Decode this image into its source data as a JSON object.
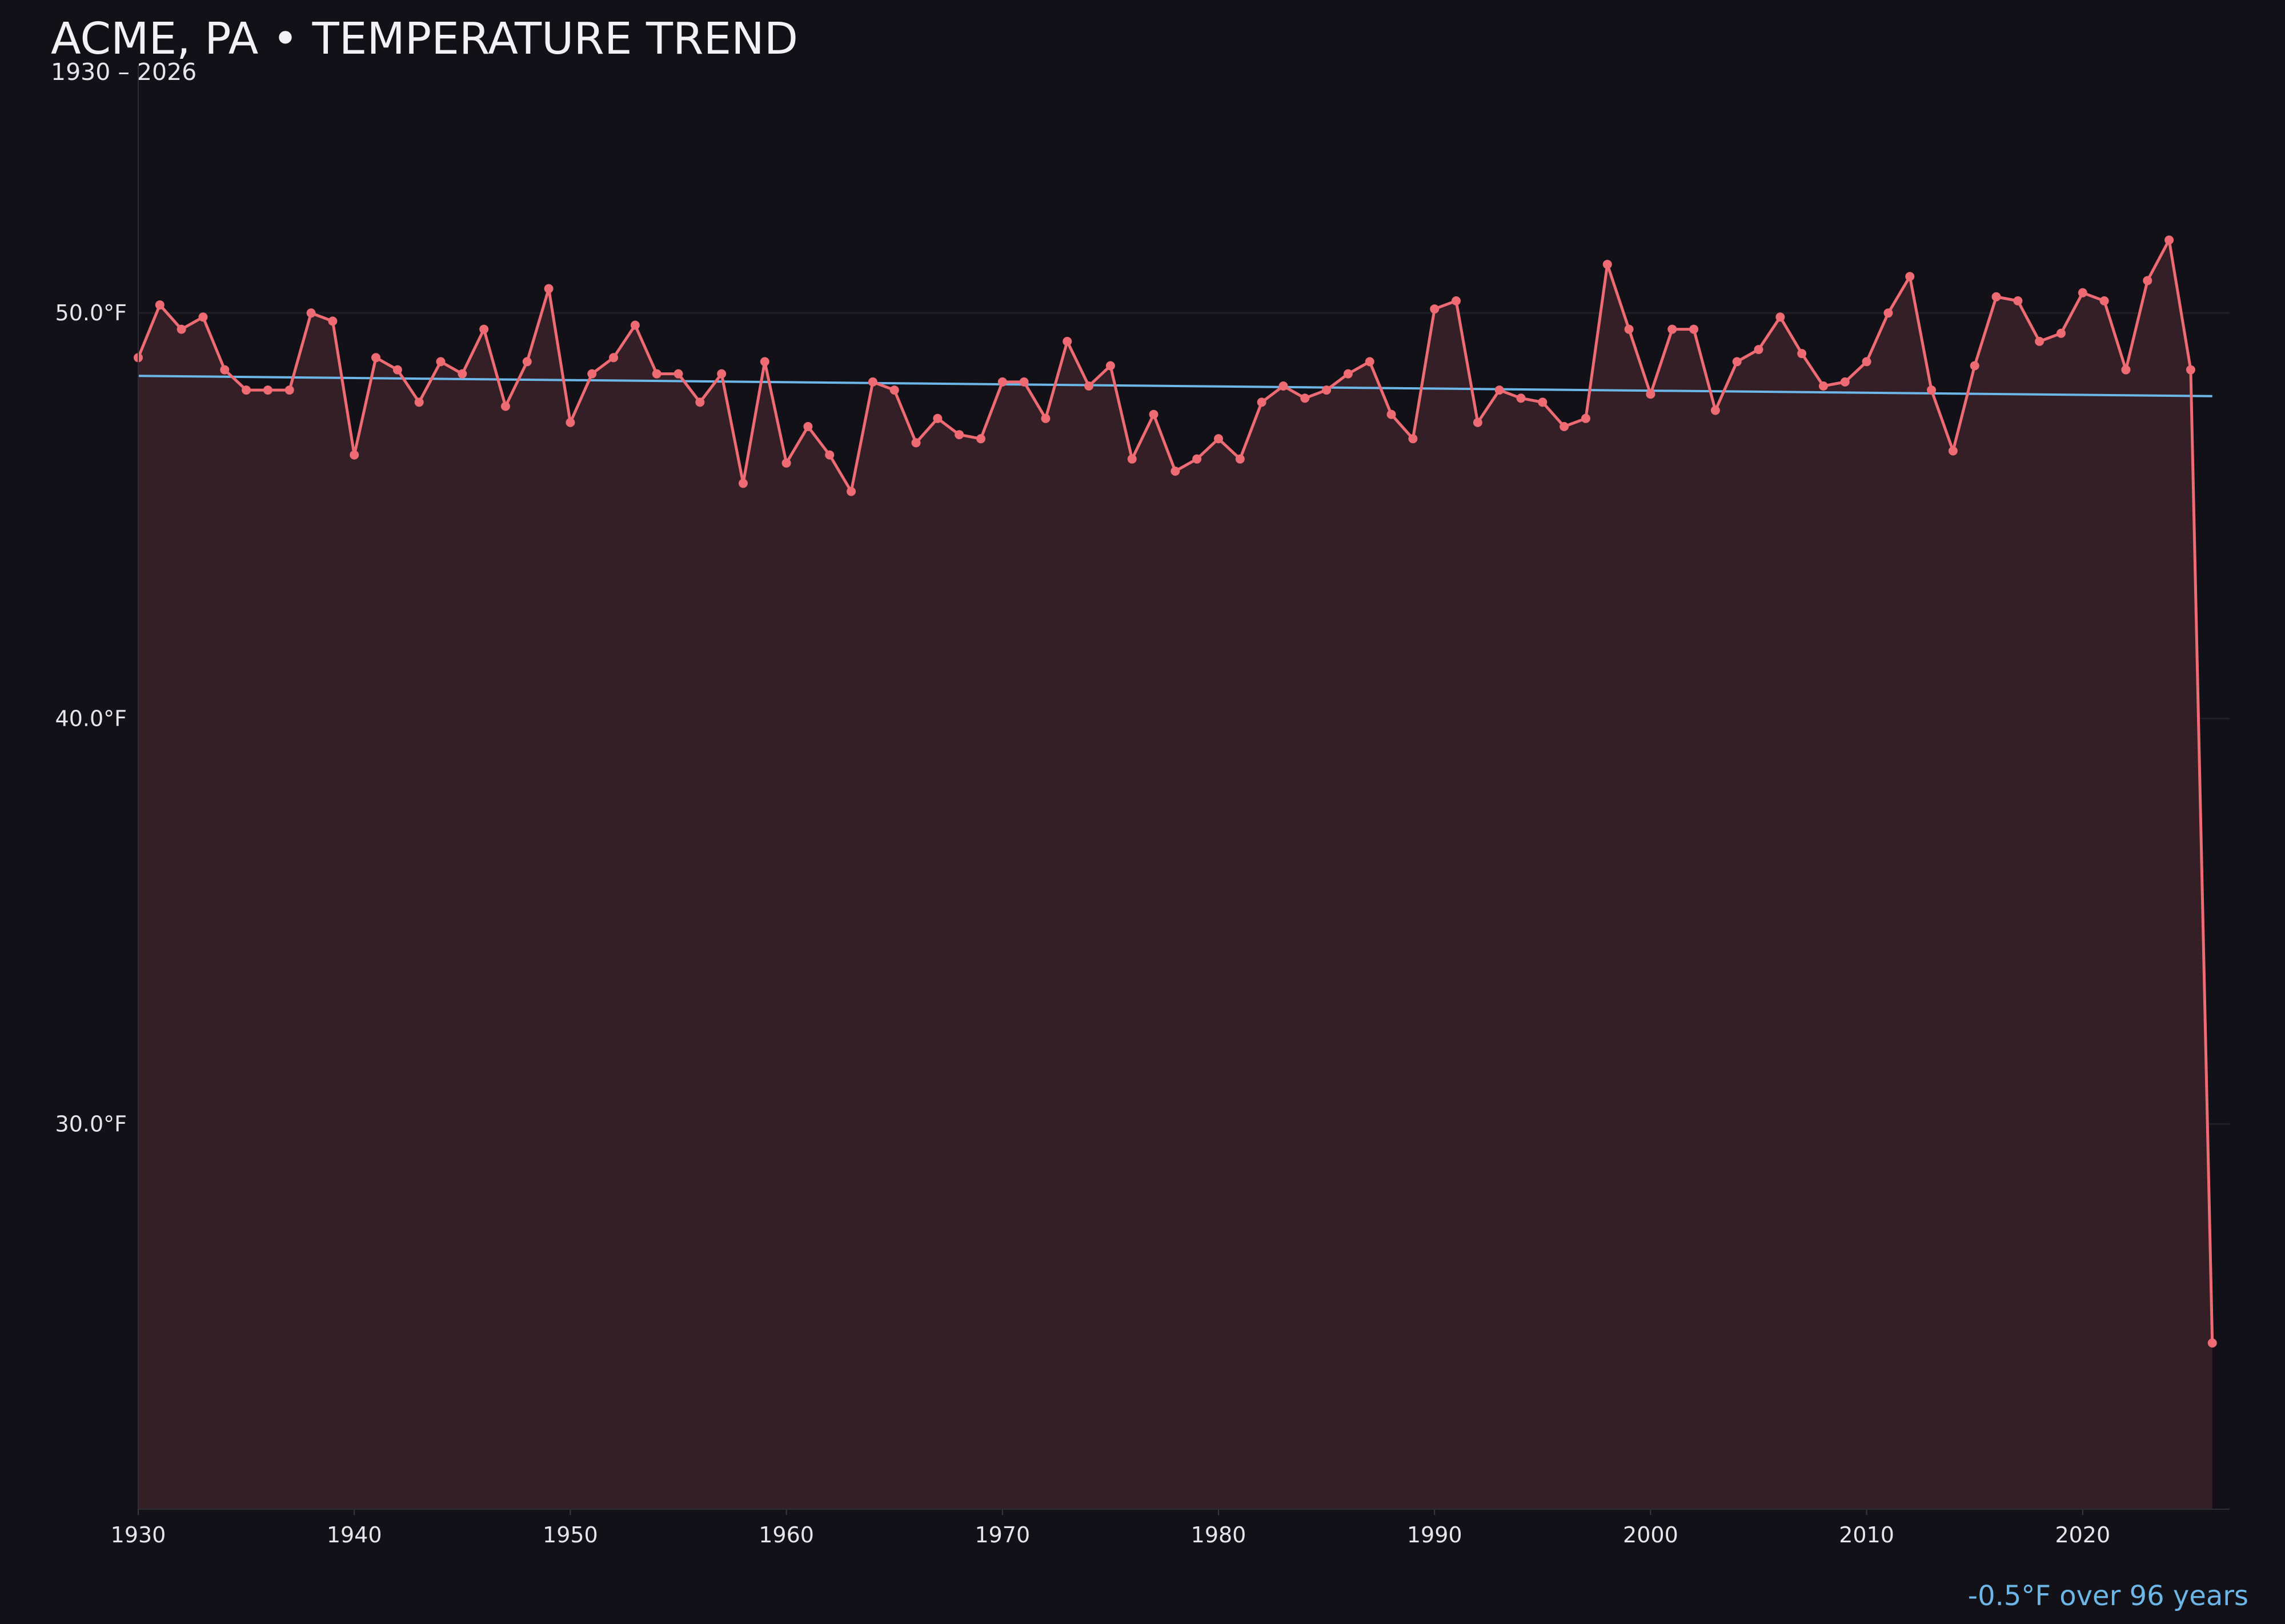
{
  "chart_data": {
    "type": "line",
    "title": "ACME, PA • TEMPERATURE TREND",
    "subtitle": "1930 – 2026",
    "annotation": "-0.5°F over 96 years",
    "x": [
      1930,
      1931,
      1932,
      1933,
      1934,
      1935,
      1936,
      1937,
      1938,
      1939,
      1940,
      1941,
      1942,
      1943,
      1944,
      1945,
      1946,
      1947,
      1948,
      1949,
      1950,
      1951,
      1952,
      1953,
      1954,
      1955,
      1956,
      1957,
      1958,
      1959,
      1960,
      1961,
      1962,
      1963,
      1964,
      1965,
      1966,
      1967,
      1968,
      1969,
      1970,
      1971,
      1972,
      1973,
      1974,
      1975,
      1976,
      1977,
      1978,
      1979,
      1980,
      1981,
      1982,
      1983,
      1984,
      1985,
      1986,
      1987,
      1988,
      1989,
      1990,
      1991,
      1992,
      1993,
      1994,
      1995,
      1996,
      1997,
      1998,
      1999,
      2000,
      2001,
      2002,
      2003,
      2004,
      2005,
      2006,
      2007,
      2008,
      2009,
      2010,
      2011,
      2012,
      2013,
      2014,
      2015,
      2016,
      2017,
      2018,
      2019,
      2020,
      2021,
      2022,
      2023,
      2024,
      2025,
      2026
    ],
    "series": [
      {
        "color": "#ef6b73",
        "values": [
          48.9,
          50.2,
          49.6,
          49.9,
          48.6,
          48.1,
          48.1,
          48.1,
          50.0,
          49.8,
          46.5,
          48.9,
          48.6,
          47.8,
          48.8,
          48.5,
          49.6,
          47.7,
          48.8,
          50.6,
          47.3,
          48.5,
          48.9,
          49.7,
          48.5,
          48.5,
          47.8,
          48.5,
          45.8,
          48.8,
          46.3,
          47.2,
          46.5,
          45.6,
          48.3,
          48.1,
          46.8,
          47.4,
          47.0,
          46.9,
          48.3,
          48.3,
          47.4,
          49.3,
          48.2,
          48.7,
          46.4,
          47.5,
          46.1,
          46.4,
          46.9,
          46.4,
          47.8,
          48.2,
          47.9,
          48.1,
          48.5,
          48.8,
          47.5,
          46.9,
          50.1,
          50.3,
          47.3,
          48.1,
          47.9,
          47.8,
          47.2,
          47.4,
          51.2,
          49.6,
          48.0,
          49.6,
          49.6,
          47.6,
          48.8,
          49.1,
          49.9,
          49.0,
          48.2,
          48.3,
          48.8,
          50.0,
          50.9,
          48.1,
          46.6,
          48.7,
          50.4,
          50.3,
          49.3,
          49.5,
          50.5,
          50.3,
          48.6,
          50.8,
          51.8,
          48.6,
          24.6
        ]
      }
    ],
    "trend": {
      "color": "#6cb6e8",
      "x": [
        1930,
        2026
      ],
      "values": [
        48.45,
        47.95
      ]
    },
    "xlim": [
      1930,
      2026.8
    ],
    "ylim": [
      20.5,
      56.1
    ],
    "xticks": [
      1930,
      1940,
      1950,
      1960,
      1970,
      1980,
      1990,
      2000,
      2010,
      2020
    ],
    "yticks": [
      {
        "value": 30,
        "label": "30.0°F"
      },
      {
        "value": 40,
        "label": "40.0°F"
      },
      {
        "value": 50,
        "label": "50.0°F"
      }
    ],
    "grid": true
  }
}
